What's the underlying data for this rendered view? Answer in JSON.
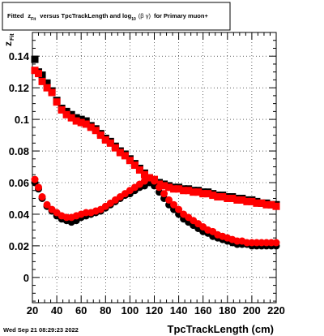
{
  "chart_data": {
    "type": "scatter",
    "title": {
      "prefix": "Fitted",
      "var_main": "z",
      "var_sub": "Fit",
      "middle": "versus TpcTrackLength and log",
      "log_sub": "10",
      "beta_gamma": "(β  γ)",
      "suffix": "for Primary muon+"
    },
    "xlabel": "TpcTrackLength (cm)",
    "ylabel_main": "z",
    "ylabel_sub": "Fit",
    "xlim": [
      20,
      220
    ],
    "ylim": [
      -0.016,
      0.155
    ],
    "xticks": [
      20,
      40,
      60,
      80,
      100,
      120,
      140,
      160,
      180,
      200,
      220
    ],
    "xtick_labels": [
      "20",
      "40",
      "60",
      "80",
      "100",
      "120",
      "140",
      "160",
      "180",
      "200",
      "220"
    ],
    "yticks": [
      0,
      0.02,
      0.04,
      0.06,
      0.08,
      0.1,
      0.12,
      0.14
    ],
    "ytick_labels": [
      "0",
      "0.02",
      "0.04",
      "0.06",
      "0.08",
      "0.1",
      "0.12",
      "0.14"
    ],
    "grid": true,
    "series": [
      {
        "color": "#000000",
        "marker": "square",
        "points": [
          [
            22,
            0.138
          ],
          [
            25,
            0.13
          ],
          [
            28,
            0.128
          ],
          [
            32,
            0.123
          ],
          [
            36,
            0.118
          ],
          [
            40,
            0.112
          ],
          [
            44,
            0.107
          ],
          [
            48,
            0.105
          ],
          [
            52,
            0.103
          ],
          [
            56,
            0.101
          ],
          [
            60,
            0.1
          ],
          [
            64,
            0.099
          ],
          [
            68,
            0.096
          ],
          [
            72,
            0.094
          ],
          [
            76,
            0.091
          ],
          [
            80,
            0.088
          ],
          [
            84,
            0.086
          ],
          [
            88,
            0.083
          ],
          [
            92,
            0.08
          ],
          [
            96,
            0.078
          ],
          [
            100,
            0.075
          ],
          [
            104,
            0.072
          ],
          [
            108,
            0.069
          ],
          [
            112,
            0.066
          ],
          [
            116,
            0.063
          ],
          [
            120,
            0.061
          ],
          [
            124,
            0.06
          ],
          [
            128,
            0.059
          ],
          [
            132,
            0.058
          ],
          [
            136,
            0.057
          ],
          [
            140,
            0.057
          ],
          [
            144,
            0.056
          ],
          [
            148,
            0.056
          ],
          [
            152,
            0.055
          ],
          [
            156,
            0.055
          ],
          [
            160,
            0.054
          ],
          [
            164,
            0.054
          ],
          [
            168,
            0.053
          ],
          [
            172,
            0.052
          ],
          [
            176,
            0.052
          ],
          [
            180,
            0.051
          ],
          [
            184,
            0.051
          ],
          [
            188,
            0.05
          ],
          [
            192,
            0.05
          ],
          [
            196,
            0.049
          ],
          [
            200,
            0.049
          ],
          [
            204,
            0.048
          ],
          [
            208,
            0.047
          ],
          [
            212,
            0.047
          ],
          [
            216,
            0.046
          ],
          [
            220,
            0.046
          ]
        ]
      },
      {
        "color": "#ff0000",
        "marker": "square",
        "points": [
          [
            22,
            0.131
          ],
          [
            25,
            0.129
          ],
          [
            28,
            0.124
          ],
          [
            32,
            0.12
          ],
          [
            36,
            0.117
          ],
          [
            40,
            0.111
          ],
          [
            44,
            0.106
          ],
          [
            48,
            0.103
          ],
          [
            52,
            0.101
          ],
          [
            56,
            0.099
          ],
          [
            60,
            0.098
          ],
          [
            64,
            0.097
          ],
          [
            68,
            0.095
          ],
          [
            72,
            0.093
          ],
          [
            76,
            0.09
          ],
          [
            80,
            0.087
          ],
          [
            84,
            0.085
          ],
          [
            88,
            0.082
          ],
          [
            92,
            0.079
          ],
          [
            96,
            0.077
          ],
          [
            100,
            0.074
          ],
          [
            104,
            0.071
          ],
          [
            108,
            0.068
          ],
          [
            112,
            0.065
          ],
          [
            116,
            0.063
          ],
          [
            120,
            0.062
          ],
          [
            124,
            0.059
          ],
          [
            128,
            0.058
          ],
          [
            132,
            0.057
          ],
          [
            136,
            0.056
          ],
          [
            140,
            0.056
          ],
          [
            144,
            0.055
          ],
          [
            148,
            0.055
          ],
          [
            152,
            0.054
          ],
          [
            156,
            0.054
          ],
          [
            160,
            0.053
          ],
          [
            164,
            0.053
          ],
          [
            168,
            0.052
          ],
          [
            172,
            0.051
          ],
          [
            176,
            0.051
          ],
          [
            180,
            0.05
          ],
          [
            184,
            0.05
          ],
          [
            188,
            0.049
          ],
          [
            192,
            0.049
          ],
          [
            196,
            0.048
          ],
          [
            200,
            0.048
          ],
          [
            204,
            0.047
          ],
          [
            208,
            0.047
          ],
          [
            212,
            0.046
          ],
          [
            216,
            0.046
          ],
          [
            220,
            0.045
          ]
        ]
      },
      {
        "color": "#000000",
        "marker": "circle",
        "points": [
          [
            22,
            0.06
          ],
          [
            25,
            0.056
          ],
          [
            28,
            0.05
          ],
          [
            32,
            0.045
          ],
          [
            36,
            0.042
          ],
          [
            40,
            0.039
          ],
          [
            44,
            0.037
          ],
          [
            48,
            0.036
          ],
          [
            52,
            0.035
          ],
          [
            56,
            0.036
          ],
          [
            60,
            0.038
          ],
          [
            64,
            0.039
          ],
          [
            68,
            0.04
          ],
          [
            72,
            0.041
          ],
          [
            76,
            0.042
          ],
          [
            80,
            0.044
          ],
          [
            84,
            0.046
          ],
          [
            88,
            0.048
          ],
          [
            92,
            0.05
          ],
          [
            96,
            0.052
          ],
          [
            100,
            0.053
          ],
          [
            104,
            0.055
          ],
          [
            108,
            0.057
          ],
          [
            112,
            0.058
          ],
          [
            116,
            0.06
          ],
          [
            120,
            0.058
          ],
          [
            124,
            0.054
          ],
          [
            128,
            0.05
          ],
          [
            132,
            0.046
          ],
          [
            136,
            0.043
          ],
          [
            140,
            0.04
          ],
          [
            144,
            0.037
          ],
          [
            148,
            0.035
          ],
          [
            152,
            0.033
          ],
          [
            156,
            0.031
          ],
          [
            160,
            0.029
          ],
          [
            164,
            0.028
          ],
          [
            168,
            0.026
          ],
          [
            172,
            0.025
          ],
          [
            176,
            0.024
          ],
          [
            180,
            0.023
          ],
          [
            184,
            0.022
          ],
          [
            188,
            0.021
          ],
          [
            192,
            0.021
          ],
          [
            196,
            0.021
          ],
          [
            200,
            0.02
          ],
          [
            204,
            0.02
          ],
          [
            208,
            0.02
          ],
          [
            212,
            0.02
          ],
          [
            216,
            0.02
          ],
          [
            220,
            0.02
          ]
        ]
      },
      {
        "color": "#ff0000",
        "marker": "circle",
        "points": [
          [
            22,
            0.062
          ],
          [
            25,
            0.057
          ],
          [
            28,
            0.051
          ],
          [
            32,
            0.046
          ],
          [
            36,
            0.043
          ],
          [
            40,
            0.041
          ],
          [
            44,
            0.039
          ],
          [
            48,
            0.038
          ],
          [
            52,
            0.038
          ],
          [
            56,
            0.039
          ],
          [
            60,
            0.04
          ],
          [
            64,
            0.041
          ],
          [
            68,
            0.041
          ],
          [
            72,
            0.042
          ],
          [
            76,
            0.043
          ],
          [
            80,
            0.045
          ],
          [
            84,
            0.047
          ],
          [
            88,
            0.049
          ],
          [
            92,
            0.051
          ],
          [
            96,
            0.053
          ],
          [
            100,
            0.055
          ],
          [
            104,
            0.057
          ],
          [
            108,
            0.059
          ],
          [
            112,
            0.061
          ],
          [
            116,
            0.063
          ],
          [
            120,
            0.061
          ],
          [
            124,
            0.057
          ],
          [
            128,
            0.053
          ],
          [
            132,
            0.049
          ],
          [
            136,
            0.046
          ],
          [
            140,
            0.043
          ],
          [
            144,
            0.04
          ],
          [
            148,
            0.038
          ],
          [
            152,
            0.036
          ],
          [
            156,
            0.034
          ],
          [
            160,
            0.032
          ],
          [
            164,
            0.03
          ],
          [
            168,
            0.029
          ],
          [
            172,
            0.027
          ],
          [
            176,
            0.026
          ],
          [
            180,
            0.025
          ],
          [
            184,
            0.024
          ],
          [
            188,
            0.023
          ],
          [
            192,
            0.023
          ],
          [
            196,
            0.022
          ],
          [
            200,
            0.022
          ],
          [
            204,
            0.022
          ],
          [
            208,
            0.022
          ],
          [
            212,
            0.022
          ],
          [
            216,
            0.022
          ],
          [
            220,
            0.022
          ]
        ]
      }
    ]
  },
  "footer": {
    "date": "Wed Sep 21 08:29:23 2022"
  }
}
